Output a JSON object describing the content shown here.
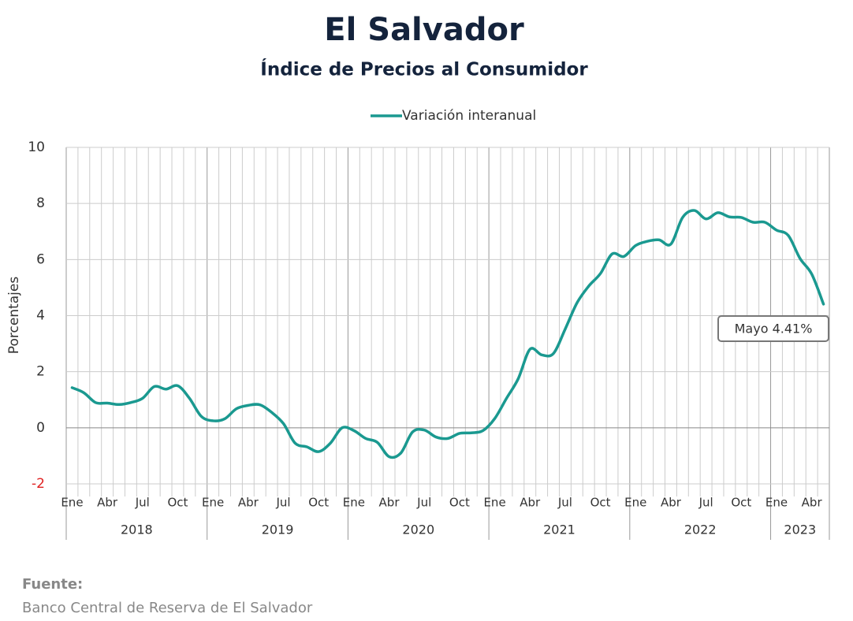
{
  "chart_data": {
    "type": "line",
    "title": "El Salvador",
    "subtitle": "Índice de Precios al Consumidor",
    "ylabel": "Porcentajes",
    "categories": [
      "Ene",
      null,
      null,
      "Abr",
      null,
      null,
      "Jul",
      null,
      null,
      "Oct",
      null,
      null,
      "Ene",
      null,
      null,
      "Abr",
      null,
      null,
      "Jul",
      null,
      null,
      "Oct",
      null,
      null,
      "Ene",
      null,
      null,
      "Abr",
      null,
      null,
      "Jul",
      null,
      null,
      "Oct",
      null,
      null,
      "Ene",
      null,
      null,
      "Abr",
      null,
      null,
      "Jul",
      null,
      null,
      "Oct",
      null,
      null,
      "Ene",
      null,
      null,
      "Abr",
      null,
      null,
      "Jul",
      null,
      null,
      "Oct",
      null,
      null,
      "Ene",
      null,
      null,
      "Abr",
      null
    ],
    "years": [
      "2018",
      "2019",
      "2020",
      "2021",
      "2022",
      "2023"
    ],
    "series": [
      {
        "name": "Variación interanual",
        "color": "#1a9990",
        "values": [
          1.43,
          1.25,
          0.9,
          0.88,
          0.83,
          0.9,
          1.05,
          1.47,
          1.38,
          1.5,
          1.05,
          0.41,
          0.25,
          0.32,
          0.68,
          0.8,
          0.82,
          0.55,
          0.15,
          -0.55,
          -0.68,
          -0.85,
          -0.55,
          0.0,
          -0.1,
          -0.38,
          -0.52,
          -1.03,
          -0.9,
          -0.15,
          -0.08,
          -0.33,
          -0.38,
          -0.2,
          -0.18,
          -0.1,
          0.33,
          1.05,
          1.75,
          2.8,
          2.6,
          2.65,
          3.52,
          4.45,
          5.05,
          5.5,
          6.2,
          6.11,
          6.5,
          6.65,
          6.7,
          6.55,
          7.5,
          7.75,
          7.45,
          7.67,
          7.52,
          7.5,
          7.33,
          7.33,
          7.05,
          6.86,
          6.04,
          5.48,
          4.41
        ]
      }
    ],
    "annotation": "Mayo 4.41%",
    "ylim": [
      -2,
      10
    ],
    "yticks": [
      -2,
      0,
      2,
      4,
      6,
      8,
      10
    ],
    "grid": true,
    "legend": "top",
    "source_title": "Fuente:",
    "source": "Banco Central de Reserva de El Salvador"
  }
}
